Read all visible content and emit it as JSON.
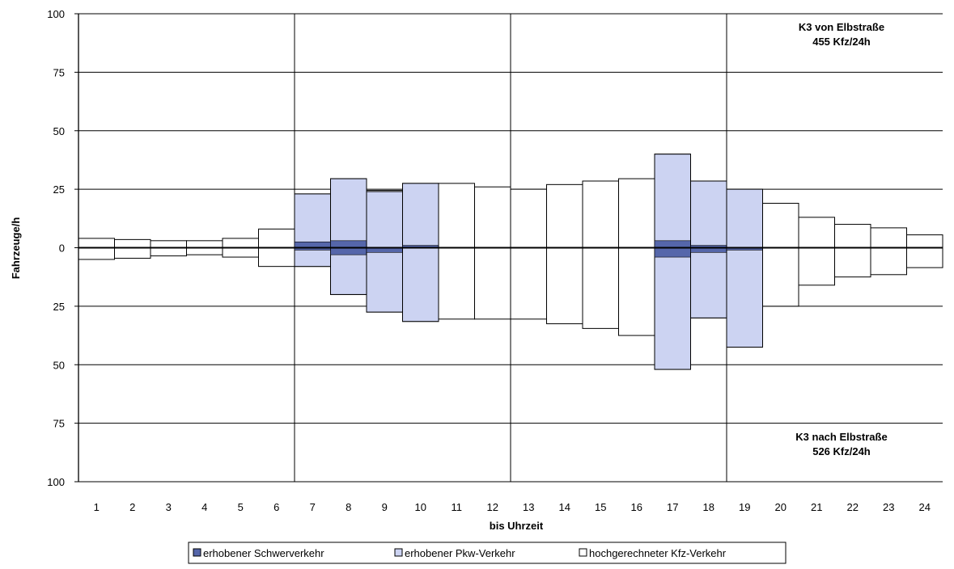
{
  "chart_data": {
    "type": "bar",
    "xlabel": "bis Uhrzeit",
    "ylabel": "Fahrzeuge/h",
    "x_categories": [
      "1",
      "2",
      "3",
      "4",
      "5",
      "6",
      "7",
      "8",
      "9",
      "10",
      "11",
      "12",
      "13",
      "14",
      "15",
      "16",
      "17",
      "18",
      "19",
      "20",
      "21",
      "22",
      "23",
      "24"
    ],
    "y_ticks_upper": [
      "100",
      "75",
      "50",
      "25"
    ],
    "y_tick_zero": "0",
    "y_ticks_lower": [
      "25",
      "50",
      "75",
      "100"
    ],
    "ylim_upper": [
      0,
      100
    ],
    "ylim_lower": [
      0,
      100
    ],
    "grid": "horizontal every 25; vertical lines at hour 6, 12, 18",
    "upper_direction": {
      "label_line1": "K3 von Elbstraße",
      "label_line2": "455 Kfz/24h",
      "hochgerechneter_kfz": [
        4,
        3.5,
        3,
        3,
        4,
        8,
        23,
        29.5,
        24.5,
        27.5,
        27.5,
        26,
        25,
        27,
        28.5,
        29.5,
        40,
        28.5,
        25,
        19,
        13,
        10,
        8.5,
        5.5
      ],
      "erhobener_pkw": [
        null,
        null,
        null,
        null,
        null,
        null,
        23,
        29.5,
        24,
        27.5,
        null,
        null,
        null,
        null,
        null,
        null,
        40,
        28.5,
        25,
        null,
        null,
        null,
        null,
        null
      ],
      "erhobener_schwerverkehr": [
        0,
        0,
        0,
        0,
        0,
        0,
        2.5,
        3,
        0,
        1,
        0,
        0,
        0,
        0,
        0,
        0,
        3,
        1,
        0,
        0,
        0,
        0,
        0,
        0
      ]
    },
    "lower_direction": {
      "label_line1": "K3 nach Elbstraße",
      "label_line2": "526 Kfz/24h",
      "hochgerechneter_kfz": [
        5,
        4.5,
        3.5,
        3,
        4,
        8,
        8,
        20,
        27.5,
        31.5,
        30.5,
        30.5,
        30.5,
        32.5,
        34.5,
        37.5,
        52,
        30,
        42.5,
        25,
        16,
        12.5,
        11.5,
        8.5
      ],
      "erhobener_pkw": [
        null,
        null,
        null,
        null,
        null,
        null,
        8,
        20,
        27.5,
        31.5,
        null,
        null,
        null,
        null,
        null,
        null,
        52,
        30,
        42.5,
        null,
        null,
        null,
        null,
        null
      ],
      "erhobener_schwerverkehr": [
        0,
        0,
        0,
        0,
        0,
        0,
        1,
        3,
        2,
        0,
        0,
        0,
        0,
        0,
        0,
        0,
        4,
        2,
        1,
        0,
        0,
        0,
        0,
        0
      ]
    },
    "legend": [
      {
        "name": "erhobener Schwerverkehr",
        "color": "#5566aa"
      },
      {
        "name": "erhobener Pkw-Verkehr",
        "color": "#ccd3f2"
      },
      {
        "name": "hochgerechneter Kfz-Verkehr",
        "color": "#ffffff"
      }
    ],
    "colors": {
      "schwer": "#5566aa",
      "pkw": "#ccd3f2",
      "kfz": "#ffffff",
      "outline": "#000000"
    }
  }
}
